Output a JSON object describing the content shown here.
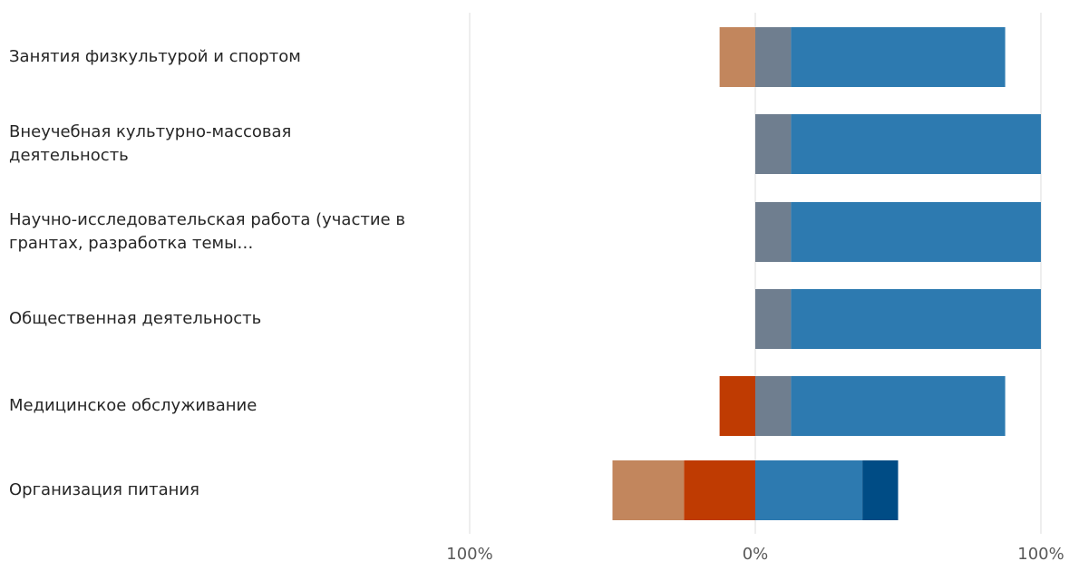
{
  "chart_data": {
    "type": "bar",
    "orientation": "horizontal",
    "stacked": "diverging",
    "categories": [
      "Занятия физкультурой и спортом",
      "Внеучебная культурно-массовая деятельность",
      "Научно-исследовательская работа (участие в грантах, разработка темы…",
      "Общественная деятельность",
      "Медицинское обслуживание",
      "Организация питания"
    ],
    "series": [
      {
        "color": "#BF3B02",
        "values": [
          0,
          0,
          0,
          0,
          -12.5,
          -25
        ]
      },
      {
        "color": "#C2865D",
        "values": [
          -12.5,
          0,
          0,
          0,
          0,
          -25
        ]
      },
      {
        "color": "#6F7E8F",
        "values": [
          12.5,
          12.5,
          12.5,
          12.5,
          12.5,
          0
        ]
      },
      {
        "color": "#2D7AB0",
        "values": [
          75,
          87.5,
          87.5,
          87.5,
          75,
          37.5
        ]
      },
      {
        "color": "#004C85",
        "values": [
          0,
          0,
          0,
          0,
          0,
          12.5
        ]
      }
    ],
    "xlim": [
      -100,
      100
    ],
    "tick_labels": [
      "100%",
      "0%",
      "100%"
    ],
    "grid": true,
    "legend": "none"
  }
}
